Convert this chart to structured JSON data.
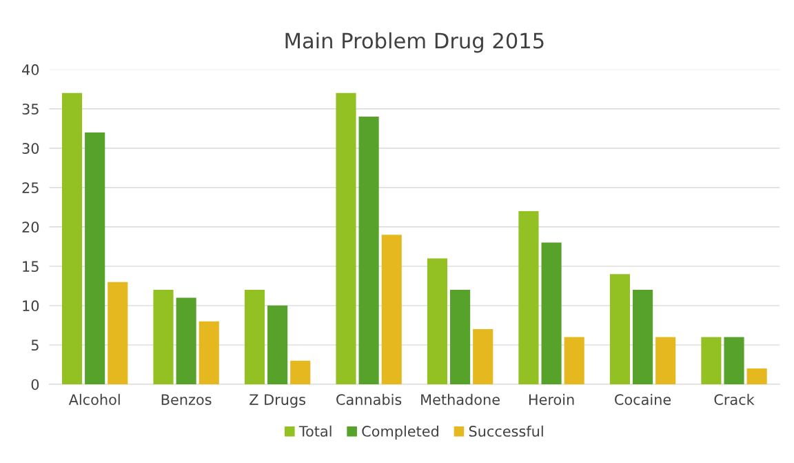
{
  "chart_data": {
    "type": "bar",
    "title": "Main Problem Drug 2015",
    "categories": [
      "Alcohol",
      "Benzos",
      "Z Drugs",
      "Cannabis",
      "Methadone",
      "Heroin",
      "Cocaine",
      "Crack"
    ],
    "series": [
      {
        "name": "Total",
        "color": "#93c022",
        "values": [
          37,
          12,
          12,
          37,
          16,
          22,
          14,
          6
        ]
      },
      {
        "name": "Completed",
        "color": "#56a22a",
        "values": [
          32,
          11,
          10,
          34,
          12,
          18,
          12,
          6
        ]
      },
      {
        "name": "Successful",
        "color": "#e6b820",
        "values": [
          13,
          8,
          3,
          19,
          7,
          6,
          6,
          2
        ]
      }
    ],
    "ylim": [
      0,
      40
    ],
    "yticks": [
      0,
      5,
      10,
      15,
      20,
      25,
      30,
      35,
      40
    ],
    "grid": "y",
    "legend": "bottom"
  }
}
